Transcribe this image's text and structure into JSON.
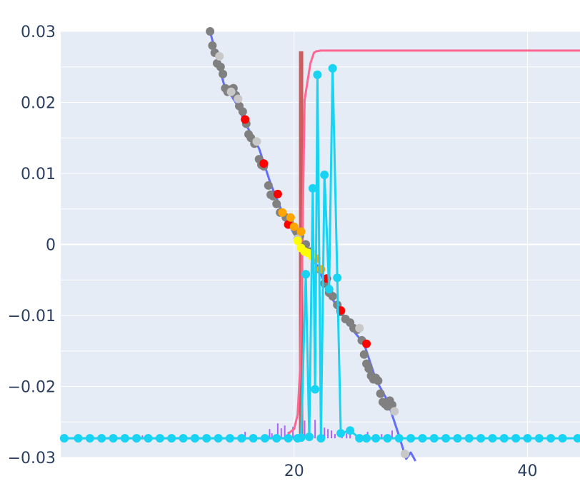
{
  "chart_data": {
    "type": "line",
    "title": "",
    "xlabel": "",
    "ylabel": "",
    "xlim": [
      0,
      44.5
    ],
    "ylim": [
      -0.03,
      0.03
    ],
    "grid": true,
    "legend": "none",
    "x_ticks": [
      {
        "value": 20,
        "label": "20"
      },
      {
        "value": 40,
        "label": "40"
      }
    ],
    "y_ticks": [
      {
        "value": 0.03,
        "label": "0.03"
      },
      {
        "value": 0.02,
        "label": "0.02"
      },
      {
        "value": 0.01,
        "label": "0.01"
      },
      {
        "value": 0,
        "label": "0"
      },
      {
        "value": -0.01,
        "label": "−0.01"
      },
      {
        "value": -0.02,
        "label": "−0.02"
      },
      {
        "value": -0.03,
        "label": "−0.03"
      }
    ],
    "colors": {
      "plot_bg": "#e5ecf6",
      "grid": "#ffffff",
      "axis_text": "#2a3f5f",
      "trend_line": "#636efa",
      "marker_gray": "#808080",
      "marker_lightgray": "#c8c8c8",
      "marker_red": "#ff0000",
      "marker_orange": "#ffa500",
      "marker_yellow": "#ffff00",
      "vertical_line": "#cd5c5c",
      "pink_line": "#ff6692",
      "cyan_series": "#19d3f3",
      "purple_bars": "#ab63fa"
    },
    "series": [
      {
        "kind": "line",
        "color": "#636efa",
        "x": [
          12.8,
          13.5,
          14.0,
          15.0,
          16.0,
          17.0,
          18.0,
          19.0,
          20.0,
          21.0,
          22.0,
          23.0,
          24.0,
          25.0,
          26.0,
          27.0,
          28.0,
          29.0,
          29.6,
          30.0,
          30.4
        ],
        "y": [
          0.03,
          0.0255,
          0.0225,
          0.02,
          0.0165,
          0.0135,
          0.0085,
          0.0045,
          0.0015,
          -0.001,
          -0.003,
          -0.007,
          -0.0095,
          -0.012,
          -0.014,
          -0.019,
          -0.022,
          -0.027,
          -0.0302,
          -0.0293,
          -0.0305
        ]
      },
      {
        "kind": "markers",
        "color": "#808080",
        "x": [
          12.8,
          13.0,
          13.2,
          13.4,
          13.7,
          13.9,
          14.1,
          14.3,
          14.5,
          14.8,
          15.0,
          15.3,
          15.6,
          15.9,
          16.1,
          16.3,
          16.6,
          17.0,
          17.2,
          17.4,
          17.8,
          18.0,
          18.2,
          18.5,
          18.8,
          19.3,
          19.6,
          20.2,
          20.5,
          21.0,
          21.4,
          21.8,
          22.2,
          22.6,
          23.0,
          23.3,
          23.7,
          24.0,
          24.4,
          24.8,
          25.1,
          25.4,
          25.8,
          26.0,
          26.2,
          26.4,
          26.6,
          26.8,
          27.0,
          27.2,
          27.4,
          27.6,
          27.8,
          28.0,
          28.2,
          28.4
        ],
        "y": [
          0.03,
          0.028,
          0.027,
          0.0255,
          0.025,
          0.024,
          0.022,
          0.0215,
          0.0218,
          0.022,
          0.021,
          0.0195,
          0.0187,
          0.017,
          0.0155,
          0.015,
          0.0142,
          0.012,
          0.0112,
          0.011,
          0.0083,
          0.007,
          0.0068,
          0.0057,
          0.0045,
          0.0038,
          0.0032,
          0.0018,
          0.0012,
          0.0,
          -0.001,
          -0.002,
          -0.0035,
          -0.0055,
          -0.0068,
          -0.0073,
          -0.0085,
          -0.0095,
          -0.0105,
          -0.011,
          -0.0118,
          -0.012,
          -0.0135,
          -0.0155,
          -0.0168,
          -0.0175,
          -0.0185,
          -0.019,
          -0.0188,
          -0.0192,
          -0.021,
          -0.0222,
          -0.0225,
          -0.0228,
          -0.022,
          -0.0226
        ]
      },
      {
        "kind": "markers",
        "color": "#c8c8c8",
        "x": [
          13.6,
          14.6,
          15.2,
          16.8,
          20.3,
          25.6,
          28.6,
          29.5
        ],
        "y": [
          0.0265,
          0.0215,
          0.0205,
          0.0145,
          0.0008,
          -0.0118,
          -0.0235,
          -0.0295
        ]
      },
      {
        "kind": "markers",
        "color": "#ff0000",
        "x": [
          15.8,
          17.4,
          18.6,
          19.5,
          22.8,
          24.0,
          26.2
        ],
        "y": [
          0.0176,
          0.0114,
          0.0071,
          0.0028,
          -0.0048,
          -0.0093,
          -0.014
        ]
      },
      {
        "kind": "markers",
        "color": "#ffa500",
        "x": [
          19.0,
          19.7,
          20.0,
          20.6,
          21.9,
          22.3
        ],
        "y": [
          0.0045,
          0.0038,
          0.0025,
          0.0018,
          -0.002,
          -0.0035
        ]
      },
      {
        "kind": "markers",
        "color": "#ffff00",
        "x": [
          20.3,
          20.6,
          20.9,
          21.2,
          21.5
        ],
        "y": [
          0.0005,
          -0.0005,
          -0.001,
          -0.0012,
          -0.0016
        ]
      },
      {
        "kind": "line",
        "color": "#cd5c5c",
        "x": [
          20.6,
          20.6
        ],
        "y": [
          -0.027,
          0.0272
        ]
      },
      {
        "kind": "line",
        "color": "#ff6692",
        "x": [
          0.0,
          19.3,
          19.6,
          20.0,
          20.3,
          20.5,
          20.7,
          20.9,
          21.2,
          21.4,
          21.7,
          21.9,
          22.3,
          44.5
        ],
        "y": [
          -0.0273,
          -0.0273,
          -0.0265,
          -0.026,
          -0.024,
          -0.018,
          -0.001,
          0.0203,
          0.0235,
          0.0255,
          0.027,
          0.0272,
          0.0273,
          0.0273
        ]
      },
      {
        "kind": "lines+markers",
        "color": "#19d3f3",
        "x": [
          0.3,
          1.5,
          2.5,
          3.5,
          4.5,
          5.5,
          6.5,
          7.5,
          8.5,
          9.5,
          10.5,
          11.5,
          12.5,
          13.5,
          14.5,
          15.5,
          16.5,
          17.5,
          18.5,
          19.5,
          20.3,
          20.6,
          21.0,
          21.3,
          21.6,
          21.8,
          22.0,
          22.3,
          22.6,
          23.0,
          23.3,
          23.7,
          24.0,
          24.8,
          25.6,
          26.2,
          27.0,
          28.0,
          29.0,
          30.0,
          31.0,
          32.0,
          33.0,
          34.0,
          35.0,
          36.0,
          37.0,
          38.0,
          39.0,
          40.0,
          41.0,
          42.0,
          43.0,
          44.3
        ],
        "y": [
          -0.0273,
          -0.0273,
          -0.0273,
          -0.0273,
          -0.0273,
          -0.0273,
          -0.0273,
          -0.0273,
          -0.0273,
          -0.0273,
          -0.0273,
          -0.0273,
          -0.0273,
          -0.0273,
          -0.0273,
          -0.0273,
          -0.0273,
          -0.0273,
          -0.0273,
          -0.0273,
          -0.0273,
          -0.0272,
          -0.0042,
          -0.0271,
          0.0079,
          -0.0204,
          0.0239,
          -0.0273,
          0.0098,
          -0.0063,
          0.0248,
          -0.0047,
          -0.0266,
          -0.0262,
          -0.0273,
          -0.0273,
          -0.0273,
          -0.0273,
          -0.0273,
          -0.0273,
          -0.0273,
          -0.0273,
          -0.0273,
          -0.0273,
          -0.0273,
          -0.0273,
          -0.0273,
          -0.0273,
          -0.0273,
          -0.0273,
          -0.0273,
          -0.0273,
          -0.0273,
          -0.0273
        ]
      },
      {
        "kind": "bars",
        "color": "#ab63fa",
        "baseline": -0.0273,
        "x": [
          7.0,
          11.6,
          15.8,
          16.5,
          17.3,
          17.9,
          18.1,
          18.6,
          18.9,
          19.2,
          19.5,
          19.9,
          20.9,
          21.8,
          22.3,
          22.6,
          22.9,
          23.2,
          23.5,
          24.1,
          24.5,
          24.8,
          25.3,
          25.8,
          26.3,
          26.9,
          27.5,
          27.9,
          28.4
        ],
        "values": [
          0.0004,
          0.0003,
          0.0009,
          0.0006,
          0.0004,
          0.0013,
          0.0007,
          0.0021,
          0.0014,
          0.0018,
          0.0009,
          0.0016,
          0.0025,
          0.0026,
          0.0017,
          0.0015,
          0.0013,
          0.0011,
          0.0006,
          0.0008,
          0.0007,
          0.0005,
          0.0004,
          0.0005,
          0.0009,
          0.0003,
          0.0006,
          0.0004,
          0.0011
        ]
      }
    ]
  }
}
